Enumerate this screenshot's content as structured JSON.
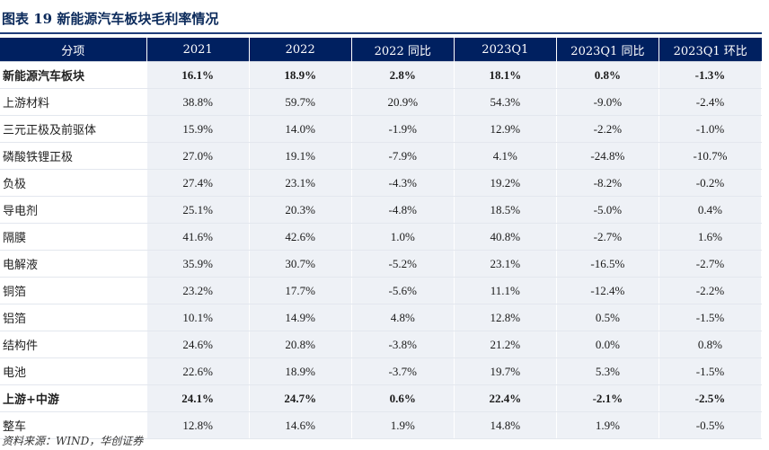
{
  "title": "图表 19 新能源汽车板块毛利率情况",
  "columns": [
    "分项",
    "2021",
    "2022",
    "2022 同比",
    "2023Q1",
    "2023Q1 同比",
    "2023Q1 环比"
  ],
  "rows": [
    {
      "name": "新能源汽车板块",
      "bold": true,
      "values": [
        "16.1%",
        "18.9%",
        "2.8%",
        "18.1%",
        "0.8%",
        "-1.3%"
      ]
    },
    {
      "name": "上游材料",
      "bold": false,
      "values": [
        "38.8%",
        "59.7%",
        "20.9%",
        "54.3%",
        "-9.0%",
        "-2.4%"
      ]
    },
    {
      "name": "三元正极及前驱体",
      "bold": false,
      "values": [
        "15.9%",
        "14.0%",
        "-1.9%",
        "12.9%",
        "-2.2%",
        "-1.0%"
      ]
    },
    {
      "name": "磷酸铁锂正极",
      "bold": false,
      "values": [
        "27.0%",
        "19.1%",
        "-7.9%",
        "4.1%",
        "-24.8%",
        "-10.7%"
      ]
    },
    {
      "name": "负极",
      "bold": false,
      "values": [
        "27.4%",
        "23.1%",
        "-4.3%",
        "19.2%",
        "-8.2%",
        "-0.2%"
      ]
    },
    {
      "name": "导电剂",
      "bold": false,
      "values": [
        "25.1%",
        "20.3%",
        "-4.8%",
        "18.5%",
        "-5.0%",
        "0.4%"
      ]
    },
    {
      "name": "隔膜",
      "bold": false,
      "values": [
        "41.6%",
        "42.6%",
        "1.0%",
        "40.8%",
        "-2.7%",
        "1.6%"
      ]
    },
    {
      "name": "电解液",
      "bold": false,
      "values": [
        "35.9%",
        "30.7%",
        "-5.2%",
        "23.1%",
        "-16.5%",
        "-2.7%"
      ]
    },
    {
      "name": "铜箔",
      "bold": false,
      "values": [
        "23.2%",
        "17.7%",
        "-5.6%",
        "11.1%",
        "-12.4%",
        "-2.2%"
      ]
    },
    {
      "name": "铝箔",
      "bold": false,
      "values": [
        "10.1%",
        "14.9%",
        "4.8%",
        "12.8%",
        "0.5%",
        "-1.5%"
      ]
    },
    {
      "name": "结构件",
      "bold": false,
      "values": [
        "24.6%",
        "20.8%",
        "-3.8%",
        "21.2%",
        "0.0%",
        "0.8%"
      ]
    },
    {
      "name": "电池",
      "bold": false,
      "values": [
        "22.6%",
        "18.9%",
        "-3.7%",
        "19.7%",
        "5.3%",
        "-1.5%"
      ]
    },
    {
      "name": "上游+中游",
      "bold": true,
      "values": [
        "24.1%",
        "24.7%",
        "0.6%",
        "22.4%",
        "-2.1%",
        "-2.5%"
      ]
    },
    {
      "name": "整车",
      "bold": false,
      "values": [
        "12.8%",
        "14.6%",
        "1.9%",
        "14.8%",
        "1.9%",
        "-0.5%"
      ]
    }
  ],
  "source": "资料来源：WIND，华创证券"
}
